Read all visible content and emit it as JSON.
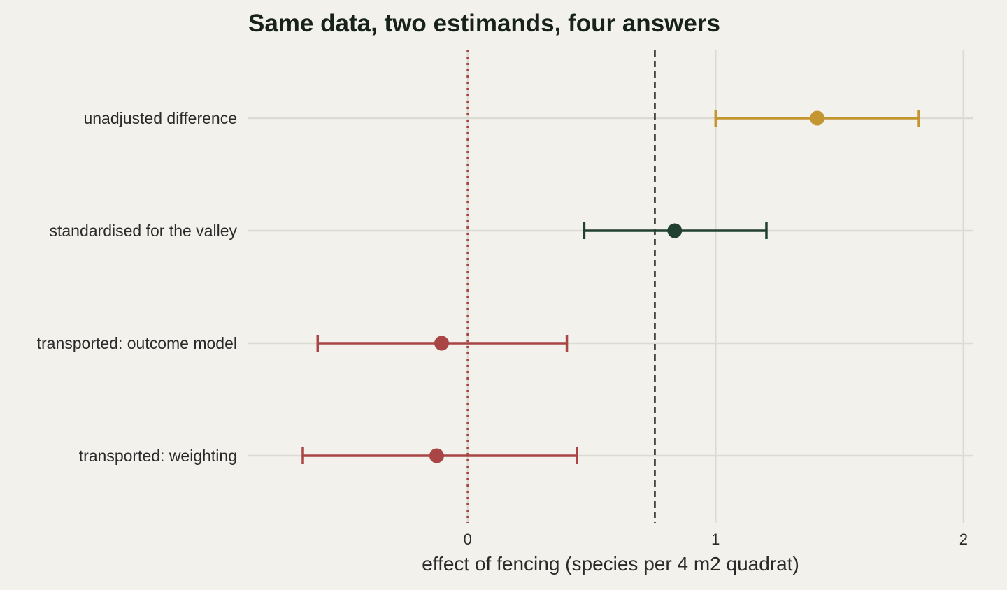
{
  "chart_data": {
    "type": "forest",
    "title": "Same data, two estimands, four answers",
    "xlabel": "effect of fencing (species per 4 m2 quadrat)",
    "ylabel": "",
    "xlim": [
      -0.885,
      2.04
    ],
    "x_ticks": [
      0,
      1,
      2
    ],
    "x_tick_labels": [
      "0",
      "1",
      "2"
    ],
    "grid": true,
    "reference_lines": [
      {
        "x": 0,
        "style": "dotted",
        "color": "#a94545"
      },
      {
        "x": 0.755,
        "style": "dashed",
        "color": "#222222"
      }
    ],
    "estimates": [
      {
        "label": "unadjusted difference",
        "estimate": 1.41,
        "lower": 1.0,
        "upper": 1.82,
        "color": "#c49632"
      },
      {
        "label": "standardised for the valley",
        "estimate": 0.835,
        "lower": 0.47,
        "upper": 1.205,
        "color": "#22402f"
      },
      {
        "label": "transported: outcome model",
        "estimate": -0.105,
        "lower": -0.605,
        "upper": 0.4,
        "color": "#a94545"
      },
      {
        "label": "transported: weighting",
        "estimate": -0.125,
        "lower": -0.665,
        "upper": 0.44,
        "color": "#a94545"
      }
    ]
  }
}
